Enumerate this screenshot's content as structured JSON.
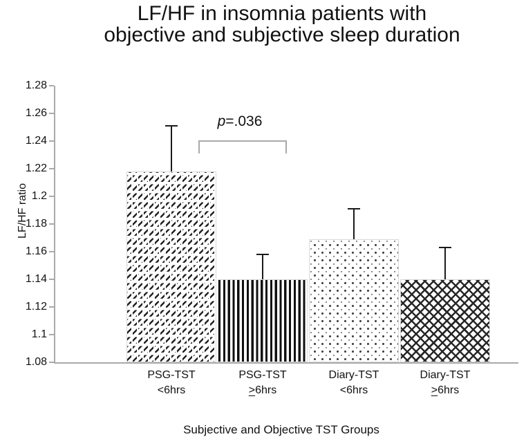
{
  "title": {
    "line1": "LF/HF in insomnia patients with",
    "line2": "objective and subjective sleep duration"
  },
  "y_axis": {
    "label": "LF/HF ratio",
    "tick_labels": [
      "1.28",
      "1.26",
      "1.24",
      "1.22",
      "1.2",
      "1.18",
      "1.16",
      "1.14",
      "1.12",
      "1.1",
      "1.08"
    ]
  },
  "x_axis": {
    "title": "Subjective and Objective TST Groups",
    "categories": [
      {
        "line1": "PSG-TST",
        "cmp": "<",
        "rest": "6hrs",
        "underline_cmp": false
      },
      {
        "line1": "PSG-TST",
        "cmp": ">",
        "rest": "6hrs",
        "underline_cmp": true
      },
      {
        "line1": "Diary-TST",
        "cmp": "<",
        "rest": "6hrs",
        "underline_cmp": false
      },
      {
        "line1": "Diary-TST",
        "cmp": ">",
        "rest": "6hrs",
        "underline_cmp": true
      }
    ]
  },
  "annotation": {
    "p": "p",
    "value": "=.036"
  },
  "colors": {
    "axis": "#a9a9a9",
    "error_bar": "#1a1a1a",
    "pattern_ink": "#222222",
    "text": "#111111",
    "background": "#ffffff"
  },
  "chart_data": {
    "type": "bar",
    "title": "LF/HF in insomnia patients with objective and subjective sleep duration",
    "xlabel": "Subjective and Objective TST Groups",
    "ylabel": "LF/HF ratio",
    "ylim": [
      1.08,
      1.28
    ],
    "ytick_step": 0.02,
    "yticks": [
      1.08,
      1.1,
      1.12,
      1.14,
      1.16,
      1.18,
      1.2,
      1.22,
      1.24,
      1.26,
      1.28
    ],
    "categories": [
      "PSG-TST <6hrs",
      "PSG-TST ≥6hrs",
      "Diary-TST <6hrs",
      "Diary-TST ≥6hrs"
    ],
    "values": [
      1.218,
      1.14,
      1.169,
      1.14
    ],
    "errors_upper": [
      0.033,
      0.018,
      0.022,
      0.023
    ],
    "bar_patterns": [
      "diagonal-dashes",
      "vertical-stripes",
      "dots",
      "diamond-crosshatch"
    ],
    "significance": {
      "label": "p=.036",
      "pair": [
        0,
        1
      ]
    },
    "grid": false,
    "legend": false
  }
}
